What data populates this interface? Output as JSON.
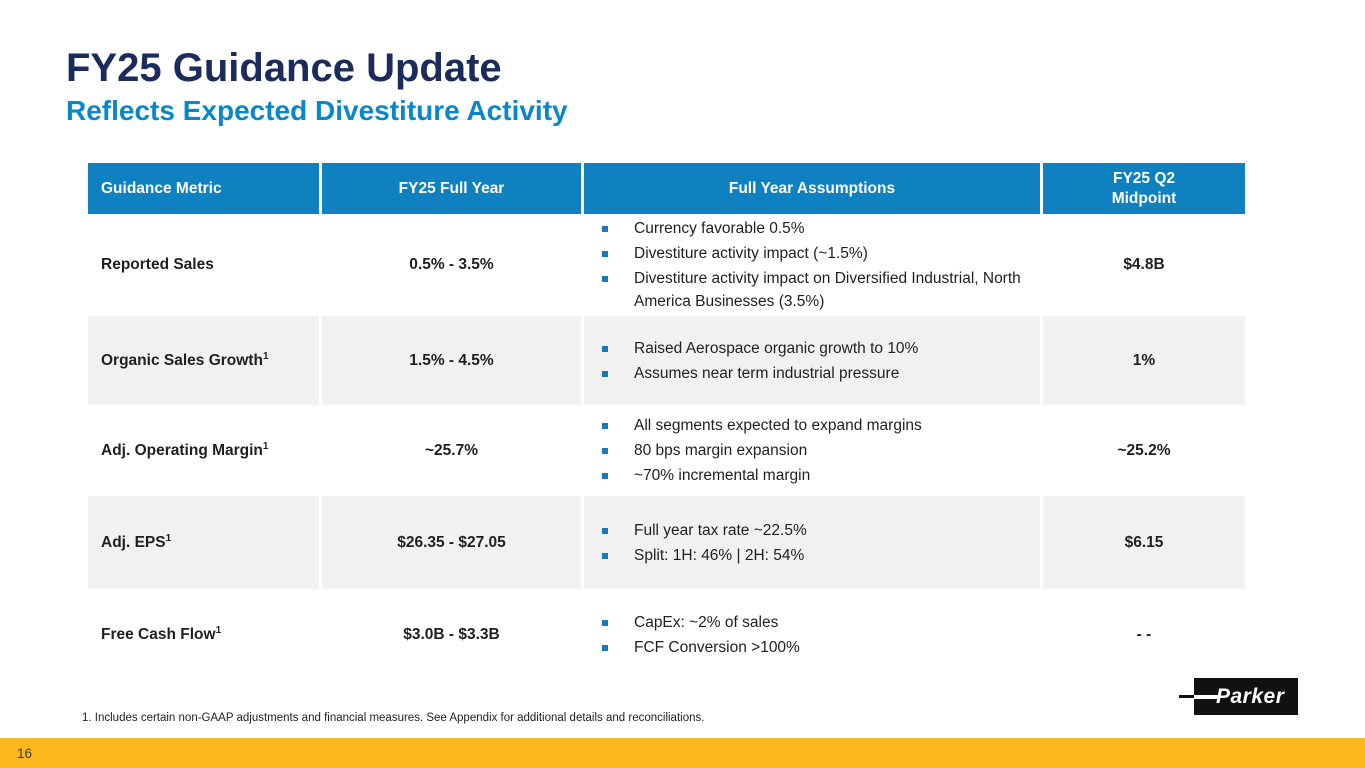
{
  "slide": {
    "title": "FY25 Guidance Update",
    "subtitle": "Reflects Expected Divestiture Activity",
    "footnote": "1. Includes certain non-GAAP adjustments and financial measures. See Appendix for additional details and reconciliations.",
    "page_number": "16",
    "logo_text": "Parker"
  },
  "colors": {
    "header_blue": "#0F81C0",
    "title_navy": "#1A2B5C",
    "subtitle_blue": "#0887CA",
    "bullet_blue": "#1778BC",
    "row_shade": "#F1F1F1",
    "footer_gold": "#FFB81C"
  },
  "table": {
    "headers": {
      "metric": "Guidance Metric",
      "full_year": "FY25 Full Year",
      "assumptions": "Full Year Assumptions",
      "q2_midpoint": "FY25 Q2\nMidpoint"
    },
    "rows": [
      {
        "metric": "Reported Sales",
        "full_year": "0.5% - 3.5%",
        "assumptions": [
          "Currency favorable 0.5%",
          "Divestiture activity impact (~1.5%)",
          "Divestiture activity impact on Diversified Industrial, North America Businesses (3.5%)"
        ],
        "q2_midpoint": "$4.8B"
      },
      {
        "metric": "Organic Sales Growth",
        "metric_sup": "1",
        "full_year": "1.5% - 4.5%",
        "assumptions": [
          "Raised Aerospace organic growth to 10%",
          "Assumes near term industrial pressure"
        ],
        "q2_midpoint": "1%"
      },
      {
        "metric": "Adj. Operating Margin",
        "metric_sup": "1",
        "full_year": "~25.7%",
        "assumptions": [
          "All segments expected to expand margins",
          "80 bps margin expansion",
          "~70% incremental margin"
        ],
        "q2_midpoint": "~25.2%"
      },
      {
        "metric": "Adj. EPS",
        "metric_sup": "1",
        "full_year": "$26.35 - $27.05",
        "assumptions": [
          "Full year tax rate ~22.5%",
          "Split: 1H: 46% | 2H: 54%"
        ],
        "q2_midpoint": "$6.15"
      },
      {
        "metric": "Free Cash Flow",
        "metric_sup": "1",
        "full_year": "$3.0B - $3.3B",
        "assumptions": [
          "CapEx: ~2% of sales",
          "FCF Conversion >100%"
        ],
        "q2_midpoint": "- -"
      }
    ]
  }
}
